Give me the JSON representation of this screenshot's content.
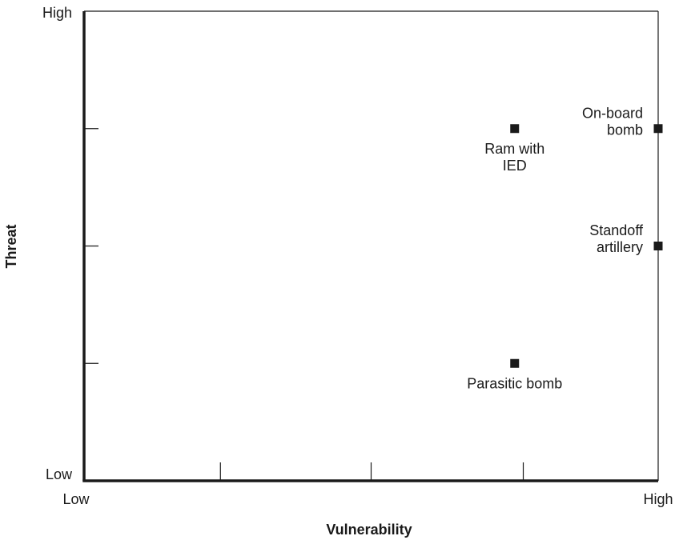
{
  "chart_data": {
    "type": "scatter",
    "title": "",
    "xlabel": "Vulnerability",
    "ylabel": "Threat",
    "xlim": [
      0,
      1
    ],
    "ylim": [
      0,
      1
    ],
    "x_tick_labels": {
      "low": "Low",
      "high": "High"
    },
    "y_tick_labels": {
      "low": "Low",
      "high": "High"
    },
    "x_minor_ticks": [
      0.2375,
      0.5,
      0.765
    ],
    "y_minor_ticks": [
      0.25,
      0.5,
      0.75
    ],
    "grid": false,
    "marker_color": "#1a1a1a",
    "points": [
      {
        "label": "Ram with IED",
        "label_lines": [
          "Ram with",
          "IED"
        ],
        "x": 0.75,
        "y": 0.75,
        "label_pos": "below"
      },
      {
        "label": "On-board bomb",
        "label_lines": [
          "On-board",
          "bomb"
        ],
        "x": 1.0,
        "y": 0.75,
        "label_pos": "left"
      },
      {
        "label": "Standoff artillery",
        "label_lines": [
          "Standoff",
          "artillery"
        ],
        "x": 1.0,
        "y": 0.5,
        "label_pos": "left"
      },
      {
        "label": "Parasitic bomb",
        "label_lines": [
          "Parasitic bomb"
        ],
        "x": 0.75,
        "y": 0.25,
        "label_pos": "below"
      }
    ]
  }
}
